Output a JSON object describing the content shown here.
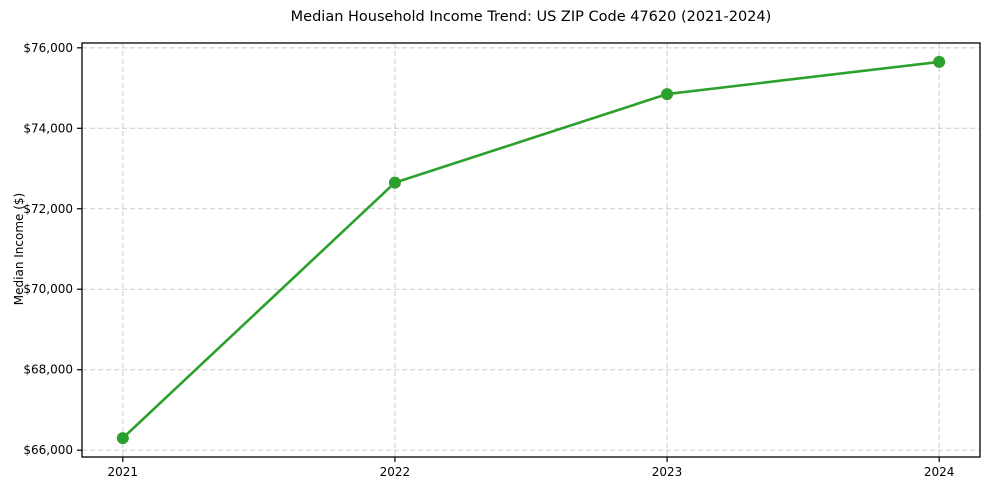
{
  "chart_data": {
    "type": "line",
    "title": "Median Household Income Trend: US ZIP Code 47620 (2021-2024)",
    "xlabel": "",
    "ylabel": "Median Income ($)",
    "x": [
      2021,
      2022,
      2023,
      2024
    ],
    "xtick_labels": [
      "2021",
      "2022",
      "2023",
      "2024"
    ],
    "values": [
      66300,
      72650,
      74850,
      75650
    ],
    "yticks": [
      66000,
      68000,
      70000,
      72000,
      74000,
      76000
    ],
    "ytick_labels": [
      "$66,000",
      "$68,000",
      "$70,000",
      "$72,000",
      "$74,000",
      "$76,000"
    ],
    "xlim": [
      2020.85,
      2024.15
    ],
    "ylim": [
      65830,
      76120
    ],
    "grid": true,
    "grid_style": "dashed",
    "legend_position": "none",
    "line_color": "#2ca02c",
    "marker": "circle",
    "grid_color": "#cccccc",
    "axis_color": "#000000",
    "background_color": "#ffffff"
  }
}
